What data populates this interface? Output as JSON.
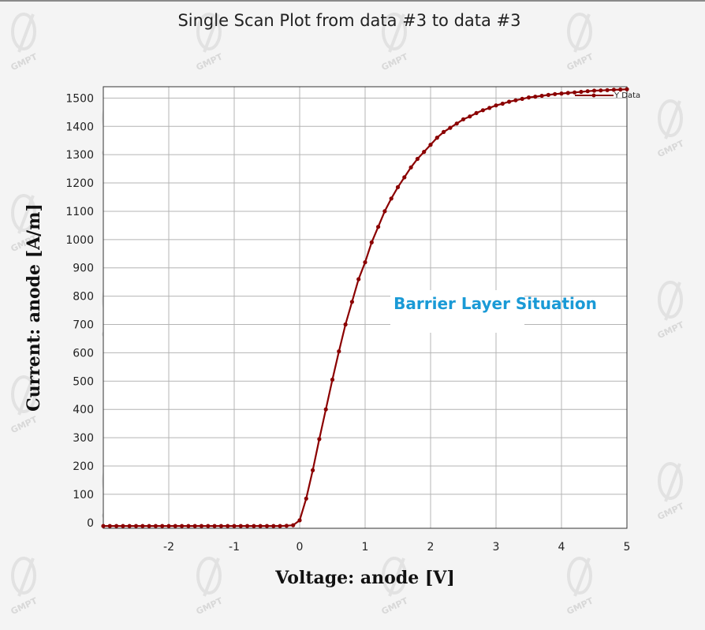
{
  "chart_data": {
    "type": "line",
    "title": "Single Scan Plot from data #3 to data #3",
    "xlabel": "Voltage: anode [V]",
    "ylabel": "Current: anode [A/m]",
    "xlim": [
      -3,
      5
    ],
    "ylim": [
      -20,
      1540
    ],
    "x_ticks": [
      -2,
      -1,
      0,
      1,
      2,
      3,
      4,
      5
    ],
    "y_ticks": [
      0,
      100,
      200,
      300,
      400,
      500,
      600,
      700,
      800,
      900,
      1000,
      1100,
      1200,
      1300,
      1400,
      1500
    ],
    "grid": true,
    "legend": "top-right",
    "annotation": "Barrier Layer Situation",
    "series": [
      {
        "name": "Y Data",
        "color": "#8b0000",
        "x": [
          -3.0,
          -2.9,
          -2.8,
          -2.7,
          -2.6,
          -2.5,
          -2.4,
          -2.3,
          -2.2,
          -2.1,
          -2.0,
          -1.9,
          -1.8,
          -1.7,
          -1.6,
          -1.5,
          -1.4,
          -1.3,
          -1.2,
          -1.1,
          -1.0,
          -0.9,
          -0.8,
          -0.7,
          -0.6,
          -0.5,
          -0.4,
          -0.3,
          -0.2,
          -0.1,
          0.0,
          0.1,
          0.2,
          0.3,
          0.4,
          0.5,
          0.6,
          0.7,
          0.8,
          0.9,
          1.0,
          1.1,
          1.2,
          1.3,
          1.4,
          1.5,
          1.6,
          1.7,
          1.8,
          1.9,
          2.0,
          2.1,
          2.2,
          2.3,
          2.4,
          2.5,
          2.6,
          2.7,
          2.8,
          2.9,
          3.0,
          3.1,
          3.2,
          3.3,
          3.4,
          3.5,
          3.6,
          3.7,
          3.8,
          3.9,
          4.0,
          4.1,
          4.2,
          4.3,
          4.4,
          4.5,
          4.6,
          4.7,
          4.8,
          4.9,
          5.0
        ],
        "y": [
          -12,
          -12,
          -12,
          -12,
          -12,
          -12,
          -12,
          -12,
          -12,
          -12,
          -12,
          -12,
          -12,
          -12,
          -12,
          -12,
          -12,
          -12,
          -12,
          -12,
          -12,
          -12,
          -12,
          -12,
          -12,
          -12,
          -12,
          -12,
          -11,
          -9,
          8,
          85,
          185,
          295,
          400,
          505,
          605,
          700,
          780,
          860,
          920,
          990,
          1045,
          1100,
          1145,
          1185,
          1220,
          1255,
          1285,
          1310,
          1335,
          1360,
          1380,
          1395,
          1410,
          1425,
          1435,
          1447,
          1457,
          1465,
          1474,
          1480,
          1487,
          1492,
          1497,
          1502,
          1505,
          1508,
          1511,
          1514,
          1516,
          1518,
          1520,
          1522,
          1524,
          1526,
          1527,
          1528,
          1529,
          1530,
          1531
        ]
      }
    ]
  },
  "watermark": "GMPT"
}
